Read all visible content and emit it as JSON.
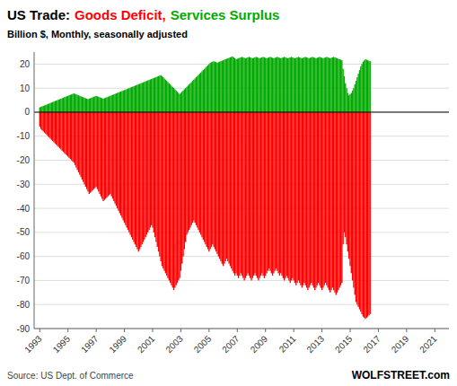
{
  "chart_data": {
    "type": "bar",
    "title": "US Trade:",
    "subtitle": "Billion $, Monthly, seasonally adjusted",
    "annotations": [
      "Source: US Dept. of Commerce",
      "WOLFSTREET.com"
    ],
    "grid": true,
    "xlim": [
      1992.6,
      2022.0
    ],
    "xticks": [
      1993,
      1995,
      1997,
      1999,
      2001,
      2003,
      2005,
      2007,
      2009,
      2011,
      2013,
      2015,
      2017,
      2019,
      2021
    ],
    "ylim": [
      -90,
      25
    ],
    "yticks": [
      -90,
      -80,
      -70,
      -60,
      -50,
      -40,
      -30,
      -20,
      -10,
      0,
      10,
      20
    ],
    "x": [
      1993,
      1993.0833,
      1993.1667,
      1993.25,
      1993.3333,
      1993.4167,
      1993.5,
      1993.5833,
      1993.6667,
      1993.75,
      1993.8333,
      1993.9167,
      1994,
      1994.0833,
      1994.1667,
      1994.25,
      1994.3333,
      1994.4167,
      1994.5,
      1994.5833,
      1994.6667,
      1994.75,
      1994.8333,
      1994.9167,
      1995,
      1995.0833,
      1995.1667,
      1995.25,
      1995.3333,
      1995.4167,
      1995.5,
      1995.5833,
      1995.6667,
      1995.75,
      1995.8333,
      1995.9167,
      1996,
      1996.0833,
      1996.1667,
      1996.25,
      1996.3333,
      1996.4167,
      1996.5,
      1996.5833,
      1996.6667,
      1996.75,
      1996.8333,
      1996.9167,
      1997,
      1997.0833,
      1997.1667,
      1997.25,
      1997.3333,
      1997.4167,
      1997.5,
      1997.5833,
      1997.6667,
      1997.75,
      1997.8333,
      1997.9167,
      1998,
      1998.0833,
      1998.1667,
      1998.25,
      1998.3333,
      1998.4167,
      1998.5,
      1998.5833,
      1998.6667,
      1998.75,
      1998.8333,
      1998.9167,
      1999,
      1999.0833,
      1999.1667,
      1999.25,
      1999.3333,
      1999.4167,
      1999.5,
      1999.5833,
      1999.6667,
      1999.75,
      1999.8333,
      1999.9167,
      2000,
      2000.0833,
      2000.1667,
      2000.25,
      2000.3333,
      2000.4167,
      2000.5,
      2000.5833,
      2000.6667,
      2000.75,
      2000.8333,
      2000.9167,
      2001,
      2001.0833,
      2001.1667,
      2001.25,
      2001.3333,
      2001.4167,
      2001.5,
      2001.5833,
      2001.6667,
      2001.75,
      2001.8333,
      2001.9167,
      2002,
      2002.0833,
      2002.1667,
      2002.25,
      2002.3333,
      2002.4167,
      2002.5,
      2002.5833,
      2002.6667,
      2002.75,
      2002.8333,
      2002.9167,
      2003,
      2003.0833,
      2003.1667,
      2003.25,
      2003.3333,
      2003.4167,
      2003.5,
      2003.5833,
      2003.6667,
      2003.75,
      2003.8333,
      2003.9167,
      2004,
      2004.0833,
      2004.1667,
      2004.25,
      2004.3333,
      2004.4167,
      2004.5,
      2004.5833,
      2004.6667,
      2004.75,
      2004.8333,
      2004.9167,
      2005,
      2005.0833,
      2005.1667,
      2005.25,
      2005.3333,
      2005.4167,
      2005.5,
      2005.5833,
      2005.6667,
      2005.75,
      2005.8333,
      2005.9167,
      2006,
      2006.0833,
      2006.1667,
      2006.25,
      2006.3333,
      2006.4167,
      2006.5,
      2006.5833,
      2006.6667,
      2006.75,
      2006.8333,
      2006.9167,
      2007,
      2007.0833,
      2007.1667,
      2007.25,
      2007.3333,
      2007.4167,
      2007.5,
      2007.5833,
      2007.6667,
      2007.75,
      2007.8333,
      2007.9167,
      2008,
      2008.0833,
      2008.1667,
      2008.25,
      2008.3333,
      2008.4167,
      2008.5,
      2008.5833,
      2008.6667,
      2008.75,
      2008.8333,
      2008.9167,
      2009,
      2009.0833,
      2009.1667,
      2009.25,
      2009.3333,
      2009.4167,
      2009.5,
      2009.5833,
      2009.6667,
      2009.75,
      2009.8333,
      2009.9167,
      2010,
      2010.0833,
      2010.1667,
      2010.25,
      2010.3333,
      2010.4167,
      2010.5,
      2010.5833,
      2010.6667,
      2010.75,
      2010.8333,
      2010.9167,
      2011,
      2011.0833,
      2011.1667,
      2011.25,
      2011.3333,
      2011.4167,
      2011.5,
      2011.5833,
      2011.6667,
      2011.75,
      2011.8333,
      2011.9167,
      2012,
      2012.0833,
      2012.1667,
      2012.25,
      2012.3333,
      2012.4167,
      2012.5,
      2012.5833,
      2012.6667,
      2012.75,
      2012.8333,
      2012.9167,
      2013,
      2013.0833,
      2013.1667,
      2013.25,
      2013.3333,
      2013.4167,
      2013.5,
      2013.5833,
      2013.6667,
      2013.75,
      2013.8333,
      2013.9167,
      2014,
      2014.0833,
      2014.1667,
      2014.25,
      2014.3333,
      2014.4167,
      2014.5,
      2014.5833,
      2014.6667,
      2014.75,
      2014.8333,
      2014.9167,
      2015,
      2015.0833,
      2015.1667,
      2015.25,
      2015.3333,
      2015.4167,
      2015.5,
      2015.5833,
      2015.6667,
      2015.75,
      2015.8333,
      2015.9167,
      2016,
      2016.0833,
      2016.1667,
      2016.25,
      2016.3333,
      2016.4167
    ],
    "series": [
      {
        "name": "Goods Deficit,",
        "color": "#ff0000",
        "values": [
          -6.0,
          -7.0,
          -7.5,
          -8.0,
          -8.5,
          -9.0,
          -9.5,
          -10.0,
          -10.5,
          -11.0,
          -11.5,
          -12.0,
          -12.5,
          -13.0,
          -13.5,
          -14.0,
          -14.5,
          -15.0,
          -15.5,
          -16.0,
          -16.5,
          -17.0,
          -17.5,
          -18.0,
          -18.5,
          -19.0,
          -19.5,
          -20.0,
          -20.5,
          -21.0,
          -22.0,
          -23.0,
          -24.0,
          -25.0,
          -26.0,
          -27.0,
          -28.0,
          -29.0,
          -30.0,
          -31.0,
          -32.0,
          -33.0,
          -34.0,
          -33.5,
          -33.0,
          -32.5,
          -32.0,
          -31.5,
          -31.0,
          -32.0,
          -33.0,
          -34.0,
          -35.0,
          -36.0,
          -37.0,
          -36.5,
          -36.0,
          -35.5,
          -35.0,
          -34.5,
          -34.0,
          -35.0,
          -36.0,
          -37.0,
          -38.0,
          -39.0,
          -40.0,
          -41.0,
          -42.0,
          -43.0,
          -44.0,
          -45.0,
          -46.0,
          -47.0,
          -48.0,
          -49.0,
          -50.0,
          -51.0,
          -52.0,
          -53.0,
          -54.0,
          -55.0,
          -56.0,
          -57.0,
          -58.0,
          -57.0,
          -56.0,
          -55.0,
          -54.0,
          -53.0,
          -52.0,
          -51.0,
          -50.0,
          -49.0,
          -48.0,
          -47.0,
          -48.0,
          -50.0,
          -52.0,
          -54.0,
          -56.0,
          -58.0,
          -60.0,
          -62.0,
          -64.0,
          -65.0,
          -66.0,
          -67.0,
          -68.0,
          -69.0,
          -70.0,
          -71.0,
          -72.0,
          -73.0,
          -74.0,
          -73.0,
          -72.0,
          -71.0,
          -70.0,
          -69.0,
          -66.0,
          -63.0,
          -60.0,
          -57.0,
          -54.0,
          -51.0,
          -50.0,
          -49.0,
          -48.0,
          -47.0,
          -46.0,
          -45.0,
          -46.0,
          -47.0,
          -48.0,
          -49.0,
          -50.0,
          -51.0,
          -52.0,
          -53.0,
          -54.0,
          -55.0,
          -56.0,
          -57.0,
          -58.0,
          -57.0,
          -56.0,
          -55.0,
          -56.0,
          -57.0,
          -58.0,
          -59.0,
          -60.0,
          -61.0,
          -62.0,
          -63.0,
          -64.0,
          -63.0,
          -62.0,
          -61.0,
          -62.0,
          -63.0,
          -64.0,
          -65.0,
          -66.0,
          -67.0,
          -68.0,
          -67.0,
          -68.0,
          -69.0,
          -68.0,
          -67.0,
          -68.0,
          -69.0,
          -70.0,
          -69.0,
          -68.0,
          -67.0,
          -68.0,
          -69.0,
          -70.0,
          -69.0,
          -68.0,
          -67.0,
          -68.0,
          -69.0,
          -70.0,
          -69.0,
          -68.0,
          -67.0,
          -68.0,
          -69.0,
          -68.0,
          -67.0,
          -66.0,
          -65.0,
          -66.0,
          -67.0,
          -68.0,
          -67.0,
          -66.0,
          -65.0,
          -66.0,
          -67.0,
          -68.0,
          -67.0,
          -68.0,
          -69.0,
          -70.0,
          -69.0,
          -68.0,
          -69.0,
          -70.0,
          -71.0,
          -70.0,
          -69.0,
          -70.0,
          -71.0,
          -72.0,
          -71.0,
          -70.0,
          -71.0,
          -72.0,
          -73.0,
          -72.0,
          -71.0,
          -72.0,
          -73.0,
          -74.0,
          -73.0,
          -72.0,
          -71.0,
          -72.0,
          -73.0,
          -74.0,
          -73.0,
          -72.0,
          -71.0,
          -72.0,
          -73.0,
          -74.0,
          -73.0,
          -72.0,
          -71.0,
          -72.0,
          -73.0,
          -74.0,
          -75.0,
          -74.0,
          -73.0,
          -74.0,
          -75.0,
          -76.0,
          -75.0,
          -74.0,
          -73.0,
          -72.0,
          -71.0,
          -55.0,
          -50.0,
          -52.0,
          -55.0,
          -58.0,
          -61.0,
          -64.0,
          -67.0,
          -70.0,
          -73.0,
          -76.0,
          -79.0,
          -80.0,
          -81.0,
          -82.0,
          -83.0,
          -84.0,
          -85.0,
          -85.5,
          -86.0,
          -85.5,
          -85.0,
          -84.5,
          -84.0
        ]
      },
      {
        "name": "Services Surplus",
        "color": "#00aa00",
        "values": [
          2.0,
          2.2,
          2.4,
          2.6,
          2.8,
          3.0,
          3.2,
          3.4,
          3.6,
          3.8,
          4.0,
          4.2,
          4.4,
          4.6,
          4.8,
          5.0,
          5.2,
          5.4,
          5.6,
          5.8,
          6.0,
          6.2,
          6.4,
          6.6,
          6.8,
          7.0,
          7.2,
          7.4,
          7.6,
          7.8,
          7.6,
          7.4,
          7.2,
          7.0,
          6.8,
          6.6,
          6.4,
          6.2,
          6.0,
          5.8,
          5.6,
          5.4,
          5.6,
          5.8,
          6.0,
          6.2,
          6.4,
          6.6,
          6.8,
          6.6,
          6.4,
          6.2,
          6.0,
          5.8,
          5.6,
          5.8,
          6.0,
          6.2,
          6.4,
          6.6,
          6.8,
          7.0,
          7.2,
          7.4,
          7.6,
          7.8,
          8.0,
          8.2,
          8.4,
          8.6,
          8.8,
          9.0,
          9.2,
          9.4,
          9.6,
          9.8,
          10.0,
          10.2,
          10.4,
          10.6,
          10.8,
          11.0,
          11.2,
          11.4,
          11.6,
          11.8,
          12.0,
          12.2,
          12.4,
          12.6,
          12.8,
          13.0,
          13.2,
          13.4,
          13.6,
          13.8,
          14.0,
          14.2,
          14.4,
          14.6,
          14.8,
          15.0,
          15.2,
          15.4,
          15.0,
          14.5,
          14.0,
          13.5,
          13.0,
          12.5,
          12.0,
          11.5,
          11.0,
          10.5,
          10.0,
          9.5,
          9.0,
          8.5,
          8.0,
          7.5,
          8.0,
          8.5,
          9.0,
          9.5,
          10.0,
          10.5,
          11.0,
          11.5,
          12.0,
          12.5,
          13.0,
          13.5,
          14.0,
          14.5,
          15.0,
          15.5,
          16.0,
          16.5,
          17.0,
          17.5,
          18.0,
          18.5,
          19.0,
          19.5,
          20.0,
          20.5,
          20.8,
          21.0,
          21.2,
          21.0,
          20.8,
          20.6,
          20.8,
          21.0,
          21.2,
          21.4,
          21.6,
          21.8,
          22.0,
          22.2,
          22.4,
          22.6,
          22.8,
          23.0,
          23.2,
          22.8,
          22.4,
          22.0,
          22.2,
          22.4,
          22.6,
          22.8,
          23.0,
          22.8,
          22.6,
          22.4,
          22.6,
          22.8,
          23.0,
          22.8,
          22.6,
          22.4,
          22.6,
          22.8,
          23.0,
          22.8,
          22.6,
          22.4,
          22.6,
          22.8,
          23.0,
          22.8,
          22.6,
          22.4,
          22.6,
          22.8,
          23.0,
          22.8,
          22.6,
          22.4,
          22.6,
          22.8,
          23.0,
          22.8,
          22.6,
          22.4,
          22.6,
          22.8,
          23.0,
          22.8,
          22.6,
          22.4,
          22.6,
          22.8,
          23.0,
          22.8,
          22.6,
          22.4,
          22.6,
          22.8,
          23.0,
          22.8,
          22.6,
          22.4,
          22.6,
          22.8,
          23.0,
          22.8,
          22.6,
          22.4,
          22.6,
          22.8,
          23.0,
          22.8,
          22.6,
          22.4,
          22.6,
          22.8,
          23.0,
          22.8,
          22.6,
          22.4,
          22.6,
          22.8,
          23.0,
          22.8,
          22.6,
          22.4,
          22.6,
          22.8,
          23.0,
          22.8,
          22.6,
          22.4,
          22.2,
          22.0,
          21.8,
          21.6,
          18.0,
          15.0,
          12.0,
          10.0,
          8.0,
          7.0,
          7.5,
          8.0,
          9.0,
          10.0,
          11.5,
          13.0,
          14.5,
          16.0,
          17.5,
          19.0,
          20.0,
          21.0,
          21.5,
          22.0,
          21.8,
          21.6,
          21.4,
          21.2
        ]
      }
    ]
  }
}
